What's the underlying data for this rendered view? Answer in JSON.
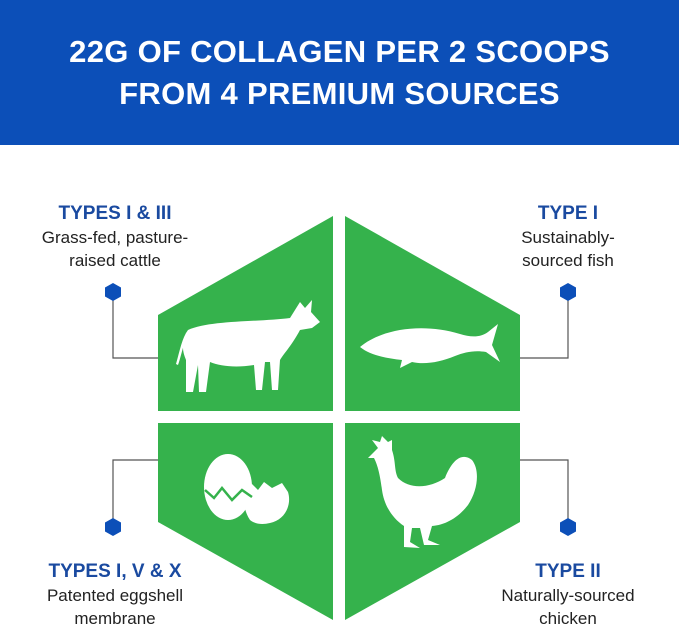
{
  "header": {
    "title_lines": [
      "22G OF COLLAGEN PER 2 SCOOPS",
      "FROM 4 PREMIUM SOURCES"
    ]
  },
  "colors": {
    "header_bg": "#0c4fb8",
    "panel_green": "#35b24c",
    "type_text": "#1a4aa0",
    "marker": "#0c4fb8"
  },
  "sources": [
    {
      "type": "TYPES I & III",
      "desc_lines": [
        "Grass-fed, pasture-",
        "raised cattle"
      ],
      "icon": "cow-icon"
    },
    {
      "type": "TYPE I",
      "desc_lines": [
        "Sustainably-",
        "sourced fish"
      ],
      "icon": "fish-icon"
    },
    {
      "type": "TYPES I, V & X",
      "desc_lines": [
        "Patented eggshell",
        "membrane"
      ],
      "icon": "egg-icon"
    },
    {
      "type": "TYPE II",
      "desc_lines": [
        "Naturally-sourced",
        "chicken"
      ],
      "icon": "chicken-icon"
    }
  ]
}
